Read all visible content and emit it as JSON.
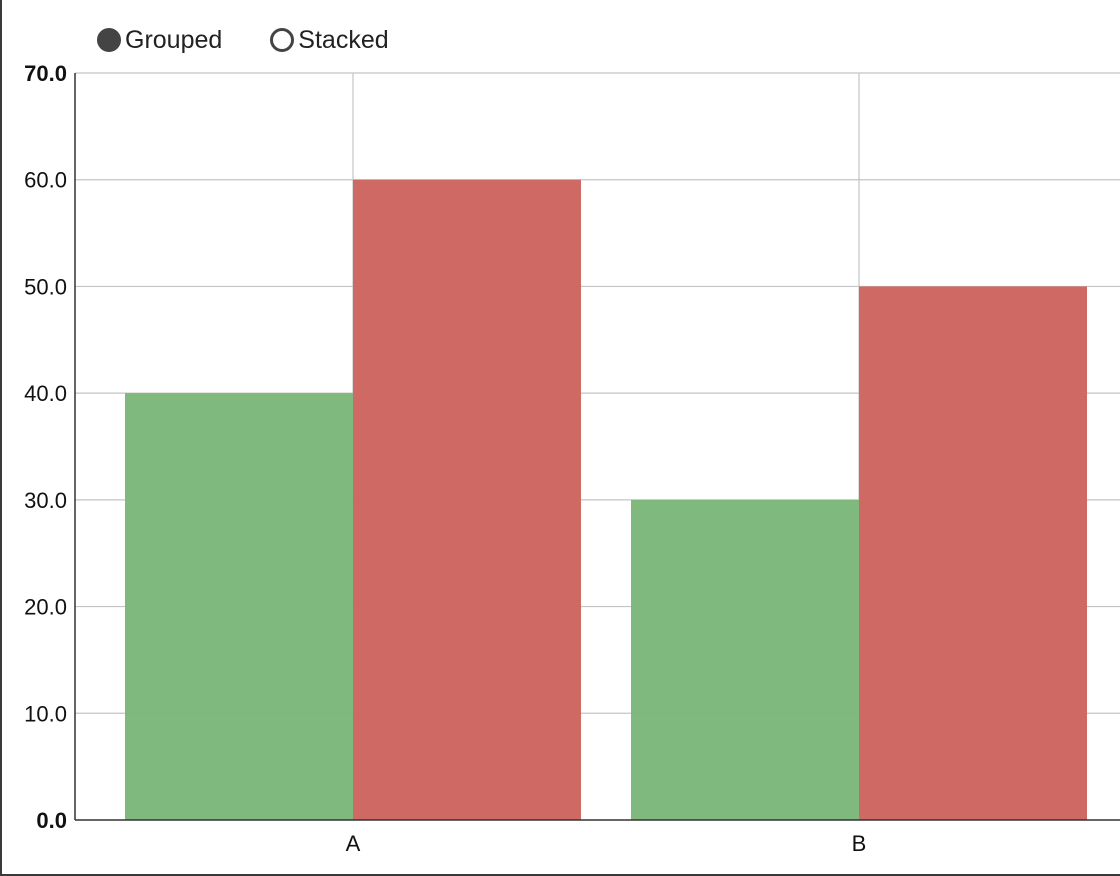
{
  "controls": {
    "grouped_label": "Grouped",
    "stacked_label": "Stacked",
    "selected": "Grouped"
  },
  "chart_data": {
    "type": "bar",
    "mode": "grouped",
    "categories": [
      "A",
      "B"
    ],
    "series": [
      {
        "values": [
          40,
          30
        ],
        "color": "#7cb87a"
      },
      {
        "values": [
          60,
          50
        ],
        "color": "#cd6760"
      }
    ],
    "ylim": [
      0,
      70
    ],
    "yticks": [
      "0.0",
      "10.0",
      "20.0",
      "30.0",
      "40.0",
      "50.0",
      "60.0",
      "70.0"
    ],
    "grid": true
  }
}
